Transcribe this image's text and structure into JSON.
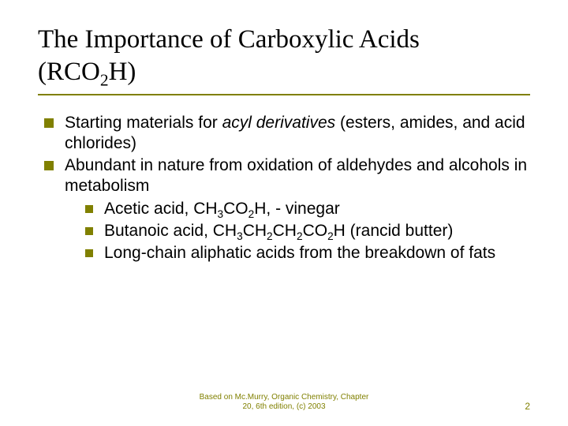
{
  "title": {
    "line1_pre": "The Importance of Carboxylic Acids",
    "line2_pre": "(RCO",
    "line2_sub": "2",
    "line2_post": "H)"
  },
  "bullets": {
    "item1_pre": "Starting materials for ",
    "item1_italic": "acyl derivatives",
    "item1_post": " (esters, amides, and acid chlorides)",
    "item2": "Abundant in nature from oxidation of aldehydes and alcohols in metabolism",
    "sub": {
      "s1_pre": "Acetic acid, CH",
      "s1_sub1": "3",
      "s1_mid1": "CO",
      "s1_sub2": "2",
      "s1_post": "H, - vinegar",
      "s2_pre": "Butanoic acid, CH",
      "s2_sub1": "3",
      "s2_mid1": "CH",
      "s2_sub2": "2",
      "s2_mid2": "CH",
      "s2_sub3": "2",
      "s2_mid3": "CO",
      "s2_sub4": "2",
      "s2_post": "H (rancid butter)",
      "s3": "Long-chain aliphatic acids from the breakdown of fats"
    }
  },
  "footer": {
    "line1": "Based on Mc.Murry, Organic Chemistry, Chapter",
    "line2": "20, 6th edition, (c) 2003"
  },
  "page_number": "2",
  "colors": {
    "accent": "#808000",
    "text": "#000000",
    "background": "#ffffff"
  }
}
